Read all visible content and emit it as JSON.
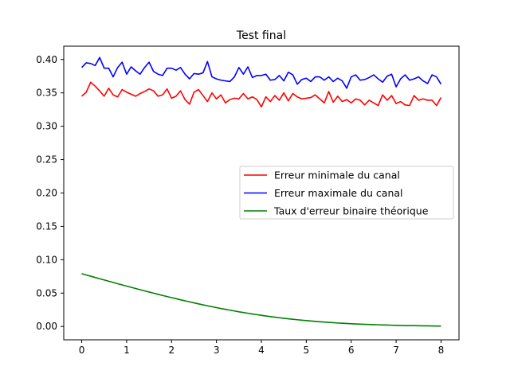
{
  "chart_data": {
    "type": "line",
    "title": "Test final",
    "xlabel": "",
    "ylabel": "",
    "xlim": [
      -0.4,
      8.4
    ],
    "ylim": [
      -0.02,
      0.42
    ],
    "x_ticks": [
      0,
      1,
      2,
      3,
      4,
      5,
      6,
      7,
      8
    ],
    "x_tick_labels": [
      "0",
      "1",
      "2",
      "3",
      "4",
      "5",
      "6",
      "7",
      "8"
    ],
    "y_ticks": [
      0.0,
      0.05,
      0.1,
      0.15,
      0.2,
      0.25,
      0.3,
      0.35,
      0.4
    ],
    "y_tick_labels": [
      "0.00",
      "0.05",
      "0.10",
      "0.15",
      "0.20",
      "0.25",
      "0.30",
      "0.35",
      "0.40"
    ],
    "grid": false,
    "legend_position": "center-right",
    "x": [
      0.0,
      0.1,
      0.2,
      0.3,
      0.4,
      0.5,
      0.6,
      0.7,
      0.8,
      0.9,
      1.0,
      1.1,
      1.2,
      1.3,
      1.4,
      1.5,
      1.6,
      1.7,
      1.8,
      1.9,
      2.0,
      2.1,
      2.2,
      2.3,
      2.4,
      2.5,
      2.6,
      2.7,
      2.8,
      2.9,
      3.0,
      3.1,
      3.2,
      3.3,
      3.4,
      3.5,
      3.6,
      3.7,
      3.8,
      3.9,
      4.0,
      4.1,
      4.2,
      4.3,
      4.4,
      4.5,
      4.6,
      4.7,
      4.8,
      4.9,
      5.0,
      5.1,
      5.2,
      5.3,
      5.4,
      5.5,
      5.6,
      5.7,
      5.8,
      5.9,
      6.0,
      6.1,
      6.2,
      6.3,
      6.4,
      6.5,
      6.6,
      6.7,
      6.8,
      6.9,
      7.0,
      7.1,
      7.2,
      7.3,
      7.4,
      7.5,
      7.6,
      7.7,
      7.8,
      7.9,
      8.0
    ],
    "series": [
      {
        "name": "Erreur minimale du canal",
        "color": "#ff0000",
        "values": [
          0.345,
          0.351,
          0.366,
          0.36,
          0.353,
          0.345,
          0.357,
          0.347,
          0.344,
          0.355,
          0.351,
          0.348,
          0.345,
          0.349,
          0.352,
          0.356,
          0.353,
          0.345,
          0.347,
          0.356,
          0.342,
          0.345,
          0.353,
          0.34,
          0.333,
          0.351,
          0.355,
          0.346,
          0.337,
          0.35,
          0.341,
          0.347,
          0.335,
          0.34,
          0.342,
          0.341,
          0.349,
          0.341,
          0.344,
          0.34,
          0.329,
          0.344,
          0.337,
          0.346,
          0.339,
          0.35,
          0.338,
          0.349,
          0.344,
          0.341,
          0.342,
          0.343,
          0.347,
          0.341,
          0.335,
          0.352,
          0.336,
          0.345,
          0.337,
          0.34,
          0.335,
          0.341,
          0.339,
          0.332,
          0.339,
          0.335,
          0.331,
          0.347,
          0.339,
          0.346,
          0.334,
          0.337,
          0.332,
          0.331,
          0.346,
          0.339,
          0.341,
          0.339,
          0.339,
          0.331,
          0.343
        ]
      },
      {
        "name": "Erreur maximale du canal",
        "color": "#0000ff",
        "values": [
          0.388,
          0.395,
          0.394,
          0.391,
          0.403,
          0.387,
          0.387,
          0.374,
          0.388,
          0.396,
          0.378,
          0.389,
          0.383,
          0.378,
          0.388,
          0.396,
          0.382,
          0.378,
          0.376,
          0.387,
          0.387,
          0.384,
          0.388,
          0.378,
          0.371,
          0.379,
          0.378,
          0.38,
          0.397,
          0.374,
          0.371,
          0.369,
          0.368,
          0.367,
          0.374,
          0.388,
          0.378,
          0.389,
          0.373,
          0.376,
          0.376,
          0.378,
          0.369,
          0.37,
          0.376,
          0.368,
          0.381,
          0.377,
          0.363,
          0.37,
          0.372,
          0.367,
          0.374,
          0.374,
          0.369,
          0.374,
          0.367,
          0.372,
          0.368,
          0.357,
          0.374,
          0.377,
          0.369,
          0.37,
          0.373,
          0.377,
          0.371,
          0.366,
          0.375,
          0.378,
          0.359,
          0.371,
          0.377,
          0.369,
          0.371,
          0.374,
          0.368,
          0.364,
          0.377,
          0.374,
          0.363
        ]
      },
      {
        "name": "Taux d'erreur binaire théorique",
        "color": "#008000",
        "values": [
          0.0791,
          0.0772,
          0.0753,
          0.0734,
          0.0715,
          0.0697,
          0.0678,
          0.066,
          0.0641,
          0.0623,
          0.0605,
          0.0587,
          0.0569,
          0.0551,
          0.0533,
          0.0516,
          0.0499,
          0.0482,
          0.0465,
          0.0448,
          0.0432,
          0.0416,
          0.04,
          0.0384,
          0.0369,
          0.0354,
          0.0339,
          0.0324,
          0.031,
          0.0296,
          0.0283,
          0.0269,
          0.0257,
          0.0244,
          0.0232,
          0.022,
          0.0209,
          0.0198,
          0.0187,
          0.0177,
          0.0167,
          0.0157,
          0.0148,
          0.0139,
          0.0131,
          0.0123,
          0.0115,
          0.0108,
          0.0101,
          0.0094,
          0.0088,
          0.0082,
          0.0076,
          0.0071,
          0.0066,
          0.0061,
          0.0057,
          0.0052,
          0.0048,
          0.0045,
          0.0041,
          0.0038,
          0.0035,
          0.0032,
          0.003,
          0.0027,
          0.0025,
          0.0023,
          0.0021,
          0.0019,
          0.0017,
          0.0016,
          0.0014,
          0.0013,
          0.0012,
          0.0011,
          0.001,
          0.0009,
          0.0008,
          0.0007,
          0.0006
        ]
      }
    ]
  }
}
